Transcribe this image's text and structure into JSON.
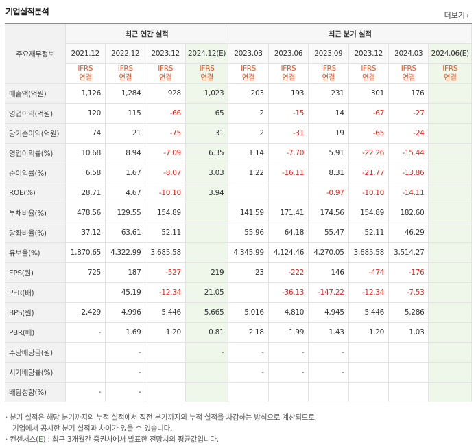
{
  "title": "기업실적분석",
  "more_label": "더보기",
  "header": {
    "row_label": "주요재무정보",
    "annual_label": "최근 연간 실적",
    "quarter_label": "최근 분기 실적",
    "ifrs": "IFRS",
    "consolidated": "연결",
    "columns": [
      "2021.12",
      "2022.12",
      "2023.12",
      "2024.12(E)",
      "2023.03",
      "2023.06",
      "2023.09",
      "2023.12",
      "2024.03",
      "2024.06(E)"
    ]
  },
  "rows": [
    {
      "label": "매출액(억원)",
      "values": [
        "1,126",
        "1,284",
        "928",
        "1,023",
        "203",
        "193",
        "231",
        "301",
        "176",
        ""
      ]
    },
    {
      "label": "영업이익(억원)",
      "values": [
        "120",
        "115",
        "-66",
        "65",
        "2",
        "-15",
        "14",
        "-67",
        "-27",
        ""
      ]
    },
    {
      "label": "당기순이익(억원)",
      "values": [
        "74",
        "21",
        "-75",
        "31",
        "2",
        "-31",
        "19",
        "-65",
        "-24",
        ""
      ]
    },
    {
      "label": "영업이익률(%)",
      "values": [
        "10.68",
        "8.94",
        "-7.09",
        "6.35",
        "1.14",
        "-7.70",
        "5.91",
        "-22.26",
        "-15.44",
        ""
      ]
    },
    {
      "label": "순이익률(%)",
      "values": [
        "6.58",
        "1.67",
        "-8.07",
        "3.03",
        "1.22",
        "-16.11",
        "8.31",
        "-21.77",
        "-13.86",
        ""
      ]
    },
    {
      "label": "ROE(%)",
      "values": [
        "28.71",
        "4.67",
        "-10.10",
        "3.94",
        "",
        "",
        "-0.97",
        "-10.10",
        "-14.11",
        ""
      ]
    },
    {
      "label": "부채비율(%)",
      "values": [
        "478.56",
        "129.55",
        "154.89",
        "",
        "141.59",
        "171.41",
        "174.56",
        "154.89",
        "182.60",
        ""
      ]
    },
    {
      "label": "당좌비율(%)",
      "values": [
        "37.12",
        "63.61",
        "52.11",
        "",
        "55.96",
        "64.18",
        "55.47",
        "52.11",
        "46.29",
        ""
      ]
    },
    {
      "label": "유보율(%)",
      "values": [
        "1,870.65",
        "4,322.99",
        "3,685.58",
        "",
        "4,345.99",
        "4,124.46",
        "4,270.05",
        "3,685.58",
        "3,514.27",
        ""
      ]
    },
    {
      "label": "EPS(원)",
      "values": [
        "725",
        "187",
        "-527",
        "219",
        "23",
        "-222",
        "146",
        "-474",
        "-176",
        ""
      ]
    },
    {
      "label": "PER(배)",
      "values": [
        "",
        "45.19",
        "-12.34",
        "21.05",
        "",
        "-36.13",
        "-147.22",
        "-12.34",
        "-7.53",
        ""
      ]
    },
    {
      "label": "BPS(원)",
      "values": [
        "2,429",
        "4,996",
        "5,446",
        "5,665",
        "5,016",
        "4,810",
        "4,945",
        "5,446",
        "5,286",
        ""
      ]
    },
    {
      "label": "PBR(배)",
      "values": [
        "-",
        "1.69",
        "1.20",
        "0.81",
        "2.18",
        "1.99",
        "1.43",
        "1.20",
        "1.03",
        ""
      ]
    },
    {
      "label": "주당배당금(원)",
      "values": [
        "",
        "-",
        "",
        "-",
        "-",
        "-",
        "-",
        "",
        "",
        ""
      ]
    },
    {
      "label": "시가배당률(%)",
      "values": [
        "",
        "-",
        "",
        "",
        "-",
        "-",
        "-",
        "",
        "",
        ""
      ]
    },
    {
      "label": "배당성향(%)",
      "values": [
        "-",
        "-",
        "",
        "",
        "",
        "",
        "",
        "",
        "",
        ""
      ]
    }
  ],
  "notes": {
    "line1": "· 분기 실적은 해당 분기까지의 누적 실적에서 직전 분기까지의 누적 실적을 차감하는 방식으로 계산되므로,",
    "line2": "기업에서 공시한 분기 실적과 차이가 있을 수 있습니다.",
    "line3_prefix": "· 컨센서스(",
    "line3_e": "E",
    "line3_suffix": ") : 최근 3개월간 증권사에서 발표한 전망치의 평균값입니다."
  }
}
